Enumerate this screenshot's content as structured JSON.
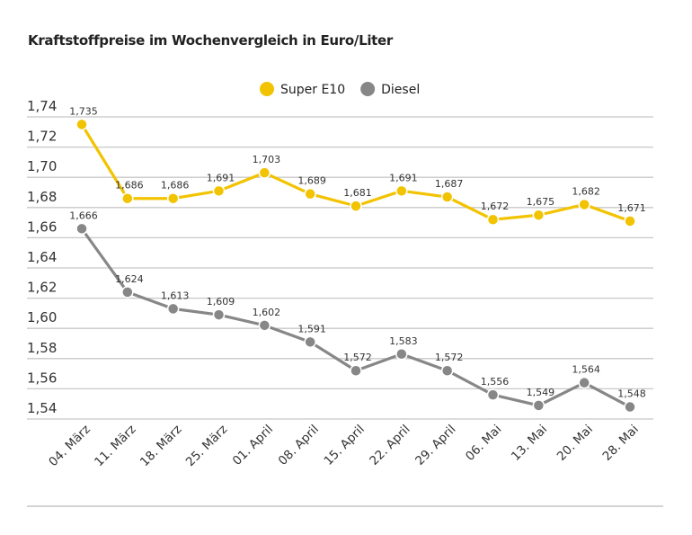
{
  "chart_data": {
    "type": "line",
    "title": "Kraftstoffpreise im Wochenvergleich in Euro/Liter",
    "categories": [
      "04. März",
      "11. März",
      "18. März",
      "25. März",
      "01. April",
      "08. April",
      "15. April",
      "22. April",
      "29. April",
      "06. Mai",
      "13. Mai",
      "20. Mai",
      "28. Mai"
    ],
    "series": [
      {
        "name": "Super E10",
        "color": "#f2c300",
        "values": [
          1.735,
          1.686,
          1.686,
          1.691,
          1.703,
          1.689,
          1.681,
          1.691,
          1.687,
          1.672,
          1.675,
          1.682,
          1.671
        ]
      },
      {
        "name": "Diesel",
        "color": "#878787",
        "values": [
          1.666,
          1.624,
          1.613,
          1.609,
          1.602,
          1.591,
          1.572,
          1.583,
          1.572,
          1.556,
          1.549,
          1.564,
          1.548
        ]
      }
    ],
    "ylim": [
      1.54,
      1.74
    ],
    "yticks": [
      1.54,
      1.56,
      1.58,
      1.6,
      1.62,
      1.64,
      1.66,
      1.68,
      1.7,
      1.72,
      1.74
    ],
    "grid": true,
    "legend": "top-center",
    "decimal_separator": ","
  }
}
